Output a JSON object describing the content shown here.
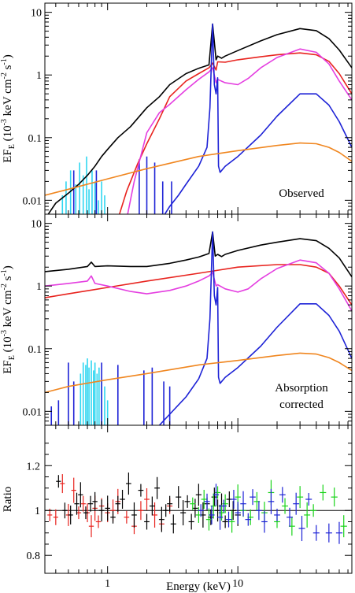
{
  "colors": {
    "model": "#000000",
    "reflection": "#e8231e",
    "component": "#e43ee0",
    "emission": "#1d22d6",
    "power": "#f0861f",
    "lines": "#2fd6f0",
    "green": "#19d419",
    "axis": "#000000"
  },
  "chart_data": [
    {
      "type": "line",
      "title": "Observed",
      "ylabel_main": "EF",
      "ylabel_sub": "E",
      "ylabel_units": " (10",
      "ylabel_exp1": "-3",
      "ylabel_units2": " keV cm",
      "ylabel_exp2": "-2",
      "ylabel_units3": " s",
      "ylabel_exp3": "-1",
      "ylabel_close": ")",
      "xscale": "log",
      "yscale": "log",
      "xlim": [
        0.33,
        75
      ],
      "ylim": [
        0.006,
        14
      ],
      "yticks": [
        "10",
        "1",
        "0.1",
        "0.01"
      ],
      "ytick_values": [
        10,
        1,
        0.1,
        0.01
      ],
      "series": [
        {
          "color": "model",
          "x": [
            0.33,
            0.4,
            0.5,
            0.6,
            0.7,
            0.8,
            0.9,
            1,
            1.2,
            1.5,
            2,
            2.5,
            3,
            4,
            5,
            6,
            6.4,
            6.8,
            7,
            7.5,
            8,
            10,
            15,
            20,
            30,
            40,
            50,
            60,
            75
          ],
          "y": [
            0.005,
            0.009,
            0.013,
            0.018,
            0.025,
            0.035,
            0.05,
            0.065,
            0.1,
            0.15,
            0.3,
            0.45,
            0.7,
            1.05,
            1.28,
            1.45,
            6.5,
            1.75,
            2.0,
            1.85,
            2.0,
            2.45,
            3.5,
            4.4,
            5.5,
            5.1,
            3.8,
            2.5,
            1.3
          ]
        },
        {
          "color": "reflection",
          "x": [
            1.2,
            1.4,
            1.7,
            2,
            2.5,
            3,
            4,
            5,
            6,
            6.4,
            6.8,
            7,
            8,
            10,
            15,
            20,
            30,
            40,
            50,
            60,
            75
          ],
          "y": [
            0.005,
            0.014,
            0.038,
            0.08,
            0.2,
            0.45,
            0.8,
            1.05,
            1.3,
            1.55,
            1.2,
            1.62,
            1.6,
            1.75,
            1.95,
            2.1,
            2.25,
            2.1,
            1.65,
            1.05,
            0.5
          ]
        },
        {
          "color": "component",
          "x": [
            1.4,
            1.6,
            2,
            2.5,
            3,
            4,
            5,
            6,
            6.4,
            6.8,
            7,
            8,
            10,
            12,
            15,
            20,
            30,
            40,
            50,
            60,
            75
          ],
          "y": [
            0.005,
            0.02,
            0.12,
            0.25,
            0.34,
            0.58,
            0.85,
            1.12,
            1.3,
            0.75,
            0.85,
            0.75,
            0.7,
            0.88,
            1.3,
            1.9,
            2.6,
            2.3,
            1.5,
            0.8,
            0.4
          ]
        },
        {
          "color": "emission",
          "x": [
            2.6,
            3,
            3.5,
            4,
            5,
            5.8,
            6.1,
            6.4,
            6.6,
            6.8,
            7.0,
            7.1,
            7.3,
            8,
            10,
            15,
            20,
            30,
            40,
            50,
            60,
            75
          ],
          "y": [
            0.005,
            0.008,
            0.012,
            0.018,
            0.035,
            0.07,
            0.3,
            6.5,
            0.7,
            0.5,
            0.9,
            0.035,
            0.028,
            0.035,
            0.05,
            0.11,
            0.22,
            0.5,
            0.5,
            0.33,
            0.18,
            0.07
          ]
        },
        {
          "color": "power",
          "x": [
            0.33,
            0.5,
            1,
            2,
            5,
            10,
            20,
            30,
            40,
            50,
            60,
            75
          ],
          "y": [
            0.012,
            0.015,
            0.022,
            0.032,
            0.05,
            0.062,
            0.075,
            0.082,
            0.08,
            0.07,
            0.058,
            0.042
          ]
        }
      ],
      "spikes": [
        {
          "color": "lines",
          "x": [
            0.45,
            0.48,
            0.52,
            0.57,
            0.61,
            0.65,
            0.69,
            0.72,
            0.76,
            0.8,
            0.85,
            0.9,
            0.95
          ],
          "y": [
            0.012,
            0.02,
            0.03,
            0.018,
            0.04,
            0.025,
            0.05,
            0.015,
            0.03,
            0.02,
            0.01,
            0.02,
            0.012
          ]
        },
        {
          "color": "emission",
          "x": [
            0.55,
            0.82,
            1.75,
            2.0,
            2.3,
            2.65,
            3.1
          ],
          "y": [
            0.03,
            0.03,
            0.045,
            0.05,
            0.04,
            0.02,
            0.02
          ]
        }
      ]
    },
    {
      "type": "line",
      "title": "Absorption",
      "subtitle": "corrected",
      "ylabel_main": "EF",
      "ylabel_sub": "E",
      "ylabel_units": " (10",
      "ylabel_exp1": "-3",
      "ylabel_units2": " keV cm",
      "ylabel_exp2": "-2",
      "ylabel_units3": " s",
      "ylabel_exp3": "-1",
      "ylabel_close": ")",
      "xscale": "log",
      "yscale": "log",
      "xlim": [
        0.33,
        75
      ],
      "ylim": [
        0.006,
        14
      ],
      "yticks": [
        "10",
        "1",
        "0.1",
        "0.01"
      ],
      "ytick_values": [
        10,
        1,
        0.1,
        0.01
      ],
      "series": [
        {
          "color": "model",
          "x": [
            0.33,
            0.5,
            0.7,
            0.75,
            0.8,
            1,
            1.5,
            2,
            3,
            4,
            5,
            6,
            6.4,
            6.7,
            7,
            7.5,
            8,
            10,
            15,
            20,
            30,
            40,
            50,
            60,
            75
          ],
          "y": [
            1.7,
            1.85,
            2.05,
            2.4,
            2.05,
            2.1,
            2.05,
            2.05,
            2.3,
            2.6,
            2.9,
            3.3,
            7.3,
            3.0,
            3.2,
            2.95,
            3.2,
            3.7,
            4.5,
            5.0,
            5.7,
            5.3,
            4.0,
            2.8,
            1.4
          ]
        },
        {
          "color": "reflection",
          "x": [
            0.33,
            0.5,
            1,
            2,
            5,
            10,
            20,
            30,
            40,
            50,
            60,
            75
          ],
          "y": [
            0.65,
            0.75,
            0.95,
            1.2,
            1.6,
            2.0,
            2.2,
            2.2,
            2.0,
            1.6,
            1.0,
            0.5
          ]
        },
        {
          "color": "component",
          "x": [
            0.33,
            0.5,
            0.7,
            0.75,
            0.8,
            1,
            1.5,
            2,
            3,
            4,
            5,
            6,
            6.4,
            6.8,
            7,
            8,
            10,
            12,
            15,
            20,
            30,
            40,
            50,
            60,
            75
          ],
          "y": [
            1.0,
            1.1,
            1.2,
            1.45,
            1.1,
            1.0,
            0.82,
            0.75,
            0.85,
            1.0,
            1.2,
            1.45,
            1.65,
            1.0,
            1.05,
            0.9,
            0.8,
            0.9,
            1.3,
            1.9,
            2.6,
            2.35,
            1.6,
            0.9,
            0.4
          ]
        },
        {
          "color": "emission",
          "x": [
            2.1,
            2.5,
            3,
            4,
            5,
            5.8,
            6.1,
            6.4,
            6.6,
            6.8,
            7.0,
            7.1,
            7.3,
            8,
            10,
            15,
            20,
            30,
            40,
            50,
            60,
            75
          ],
          "y": [
            0.005,
            0.006,
            0.009,
            0.017,
            0.033,
            0.07,
            0.3,
            7.3,
            0.7,
            0.5,
            0.95,
            0.035,
            0.028,
            0.035,
            0.05,
            0.11,
            0.22,
            0.52,
            0.52,
            0.34,
            0.19,
            0.07
          ]
        },
        {
          "color": "power",
          "x": [
            0.33,
            0.5,
            1,
            2,
            5,
            10,
            20,
            30,
            40,
            50,
            60,
            75
          ],
          "y": [
            0.02,
            0.025,
            0.032,
            0.04,
            0.055,
            0.065,
            0.078,
            0.085,
            0.082,
            0.072,
            0.06,
            0.045
          ]
        }
      ],
      "spikes": [
        {
          "color": "lines",
          "x": [
            0.62,
            0.65,
            0.68,
            0.7,
            0.72,
            0.75,
            0.78,
            0.8,
            0.83,
            0.86,
            0.9,
            0.95,
            1.0
          ],
          "y": [
            0.04,
            0.06,
            0.055,
            0.07,
            0.05,
            0.065,
            0.045,
            0.06,
            0.04,
            0.05,
            0.03,
            0.025,
            0.015
          ]
        },
        {
          "color": "emission",
          "x": [
            0.37,
            0.42,
            0.5,
            0.55,
            0.9,
            1.2,
            1.9,
            2.2,
            2.7,
            3.0
          ],
          "y": [
            0.012,
            0.015,
            0.06,
            0.03,
            0.06,
            0.055,
            0.045,
            0.05,
            0.03,
            0.025
          ]
        }
      ]
    },
    {
      "type": "scatter",
      "xlabel": "Energy (keV)",
      "ylabel": "Ratio",
      "xscale": "log",
      "xlim": [
        0.33,
        75
      ],
      "ylim": [
        0.72,
        1.38
      ],
      "yticks": [
        "1.2",
        "1",
        "0.8"
      ],
      "ytick_values": [
        1.2,
        1.0,
        0.8
      ],
      "xticks": [
        "1",
        "10"
      ],
      "xtick_values": [
        1,
        10
      ],
      "reference_line": 1.0,
      "series": [
        {
          "color": "reflection",
          "x": [
            0.36,
            0.4,
            0.45,
            0.5,
            0.55,
            0.6,
            0.65,
            0.7,
            0.75,
            0.8,
            0.85,
            0.9,
            1.0,
            1.1,
            1.2,
            1.4,
            1.6,
            1.8,
            2.0,
            2.3,
            2.6,
            3.0
          ],
          "y": [
            0.98,
            0.97,
            1.12,
            0.98,
            1.09,
            0.99,
            1.03,
            0.99,
            0.93,
            1.01,
            0.95,
            1.02,
            0.99,
            1.0,
            1.04,
            0.97,
            0.93,
            1.0,
            1.05,
            0.98,
            0.94,
            1.02
          ]
        },
        {
          "color": "model",
          "x": [
            0.42,
            0.47,
            0.52,
            0.58,
            0.62,
            0.68,
            0.74,
            0.8,
            0.9,
            1.0,
            1.1,
            1.2,
            1.3,
            1.45,
            1.6,
            1.8,
            2.0,
            2.2,
            2.4,
            2.6,
            2.8,
            3.0,
            3.2,
            3.5,
            3.8,
            4.1,
            4.4,
            4.7,
            5.0,
            5.4,
            5.8,
            6.2,
            6.6,
            7.0,
            7.5,
            8.0,
            8.6,
            9.2,
            10
          ],
          "y": [
            1.13,
            1.0,
            0.98,
            1.03,
            1.07,
            0.99,
            1.03,
            1.04,
            1.0,
            1.01,
            0.97,
            1.03,
            1.05,
            1.12,
            0.98,
            1.09,
            0.95,
            1.02,
            1.1,
            0.96,
            1.0,
            1.03,
            0.94,
            1.06,
            0.99,
            1.04,
            0.95,
            1.01,
            1.07,
            0.98,
            1.03,
            0.97,
            1.06,
            1.0,
            1.02,
            0.95,
            1.05,
            1.0,
            0.98
          ]
        },
        {
          "color": "green",
          "x": [
            4.5,
            5.0,
            5.5,
            6.0,
            6.5,
            7.0,
            7.5,
            8.0,
            9.0,
            10,
            11,
            12.5,
            14,
            16,
            18,
            20,
            23,
            26,
            30,
            34,
            38,
            45,
            55,
            65
          ],
          "y": [
            1.03,
            0.98,
            1.05,
            0.96,
            1.02,
            1.08,
            0.99,
            1.03,
            0.95,
            1.06,
            1.0,
            0.97,
            1.04,
            0.99,
            1.08,
            0.95,
            1.02,
            0.93,
            1.06,
            0.98,
            1.0,
            1.08,
            1.06,
            0.93
          ]
        },
        {
          "color": "emission",
          "x": [
            5.2,
            5.8,
            6.3,
            6.8,
            7.3,
            7.8,
            8.5,
            9.3,
            10,
            11,
            12,
            13,
            14.5,
            16,
            18,
            20,
            22,
            25,
            28,
            31,
            35,
            40,
            50,
            60
          ],
          "y": [
            1.0,
            1.04,
            0.98,
            1.07,
            0.97,
            1.02,
            0.96,
            1.05,
            0.99,
            1.03,
            0.96,
            1.06,
            1.0,
            0.95,
            1.04,
            0.98,
            1.07,
            0.97,
            1.03,
            0.92,
            1.05,
            0.9,
            0.9,
            0.9
          ]
        }
      ]
    }
  ]
}
